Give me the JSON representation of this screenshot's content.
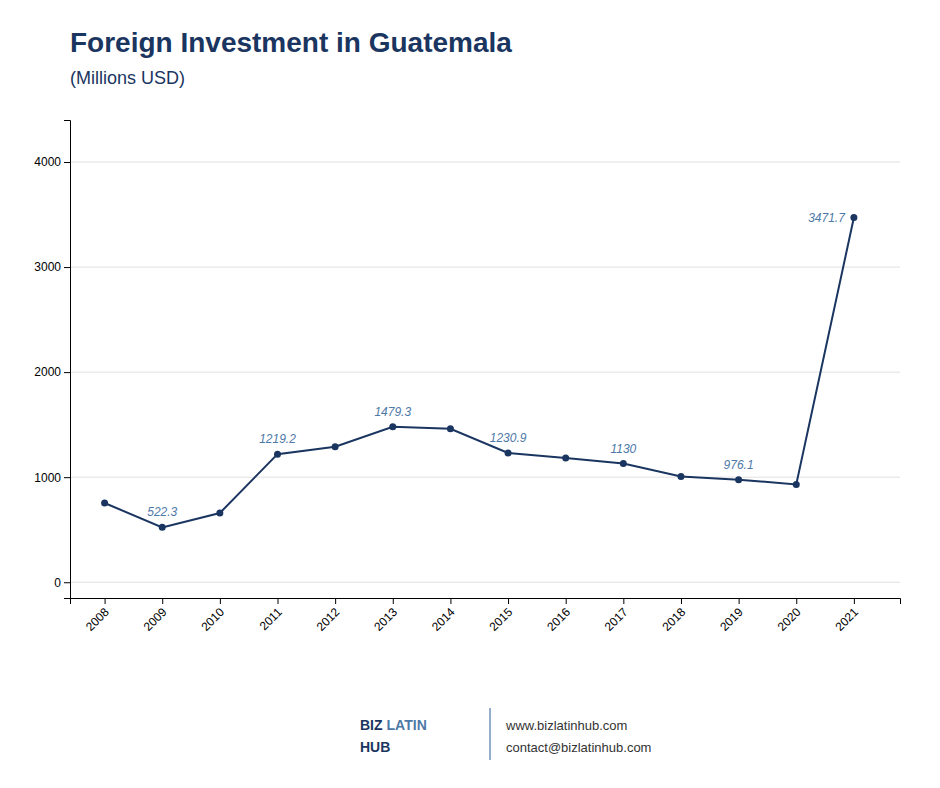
{
  "chart_data": {
    "type": "line",
    "title": "Foreign Investment in Guatemala",
    "subtitle": "(Millions USD)",
    "x": [
      2008,
      2009,
      2010,
      2011,
      2012,
      2013,
      2014,
      2015,
      2016,
      2017,
      2018,
      2019,
      2020,
      2021
    ],
    "values": [
      754.0,
      522.3,
      659.0,
      1219.2,
      1290.0,
      1479.3,
      1460.0,
      1230.9,
      1182.0,
      1130.0,
      1007.0,
      976.1,
      931.0,
      3471.7
    ],
    "color": "#1a3560",
    "marker": "circle",
    "xlim": [
      2007.4,
      2021.8
    ],
    "xticks": [
      2008,
      2009,
      2010,
      2011,
      2012,
      2013,
      2014,
      2015,
      2016,
      2017,
      2018,
      2019,
      2020,
      2021
    ],
    "ylim": [
      -150,
      4400
    ],
    "yticks": [
      0,
      1000,
      2000,
      3000,
      4000
    ],
    "grid": true,
    "annotations": [
      {
        "x": 2009,
        "y": 522.3,
        "text": "522.3"
      },
      {
        "x": 2011,
        "y": 1219.2,
        "text": "1219.2"
      },
      {
        "x": 2013,
        "y": 1479.3,
        "text": "1479.3"
      },
      {
        "x": 2015,
        "y": 1230.9,
        "text": "1230.9"
      },
      {
        "x": 2017,
        "y": 1130,
        "text": "1130"
      },
      {
        "x": 2019,
        "y": 976.1,
        "text": "976.1"
      },
      {
        "x": 2021,
        "y": 3471.7,
        "text": "3471.7"
      }
    ],
    "footer": [
      "BIZ",
      "LATIN",
      "HUB",
      "www.bizlatinhub.com",
      "contact@bizlatinhub.com"
    ]
  }
}
